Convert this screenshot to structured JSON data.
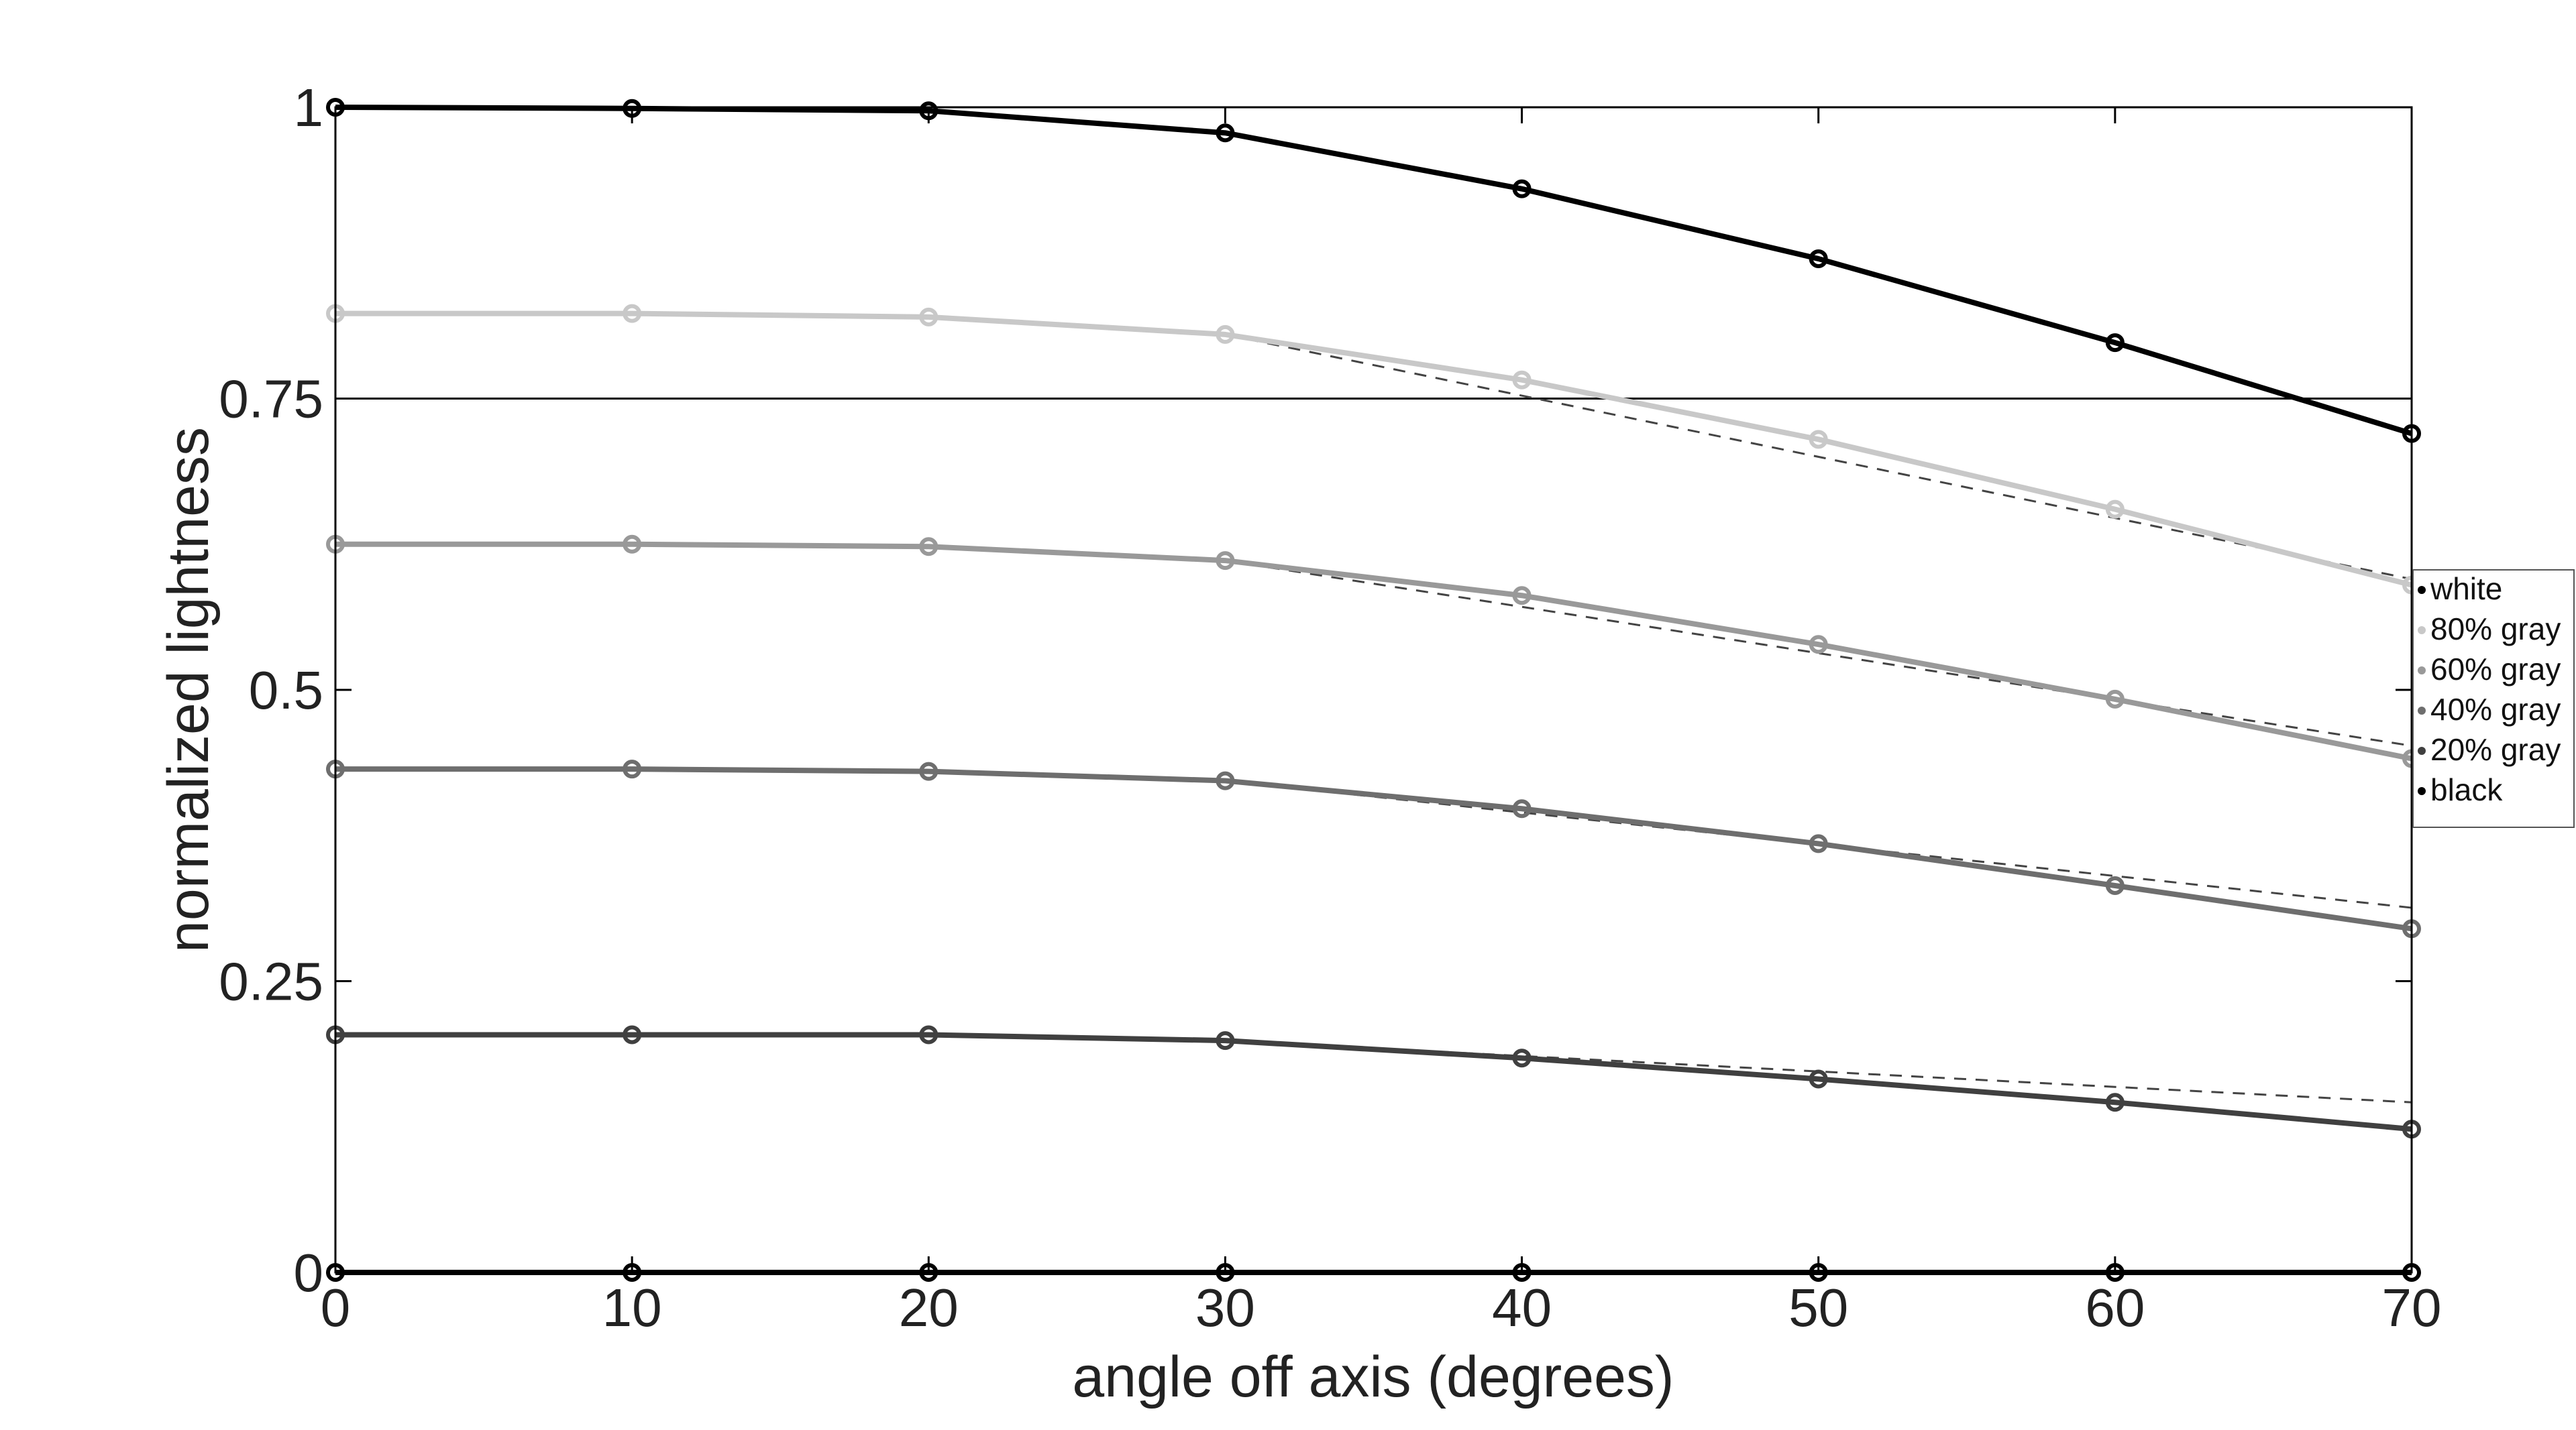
{
  "chart_data": {
    "type": "line",
    "title": "",
    "xlabel": "angle off axis (degrees)",
    "ylabel": "normalized lightness",
    "xlim": [
      0,
      70
    ],
    "ylim": [
      0,
      1
    ],
    "x": [
      0,
      10,
      20,
      30,
      40,
      50,
      60,
      70
    ],
    "xticks": [
      "0",
      "10",
      "20",
      "30",
      "40",
      "50",
      "60",
      "70"
    ],
    "yticks": [
      {
        "value": 0,
        "label": "0"
      },
      {
        "value": 0.25,
        "label": "0.25"
      },
      {
        "value": 0.5,
        "label": "0.5"
      },
      {
        "value": 0.75,
        "label": "0.75"
      },
      {
        "value": 1,
        "label": "1"
      }
    ],
    "reference_line": {
      "y": 0.75
    },
    "grid": false,
    "legend_position": "right",
    "series": [
      {
        "name": "white",
        "color": "#000000",
        "values": [
          1.0,
          0.999,
          0.997,
          0.978,
          0.93,
          0.87,
          0.798,
          0.72
        ],
        "fit_end": null
      },
      {
        "name": "80% gray",
        "color": "#c8c8c8",
        "values": [
          0.823,
          0.823,
          0.82,
          0.805,
          0.766,
          0.715,
          0.655,
          0.59
        ],
        "fit_end": 0.595
      },
      {
        "name": "60% gray",
        "color": "#999999",
        "values": [
          0.625,
          0.625,
          0.623,
          0.611,
          0.581,
          0.539,
          0.492,
          0.441
        ],
        "fit_end": 0.452
      },
      {
        "name": "40% gray",
        "color": "#6e6e6e",
        "values": [
          0.432,
          0.432,
          0.43,
          0.422,
          0.398,
          0.368,
          0.332,
          0.295
        ],
        "fit_end": 0.313
      },
      {
        "name": "20% gray",
        "color": "#404040",
        "values": [
          0.204,
          0.204,
          0.204,
          0.199,
          0.184,
          0.166,
          0.146,
          0.123
        ],
        "fit_end": 0.146
      },
      {
        "name": "black",
        "color": "#000000",
        "values": [
          0,
          0,
          0,
          0,
          0,
          0,
          0,
          0
        ],
        "fit_end": null
      }
    ]
  }
}
